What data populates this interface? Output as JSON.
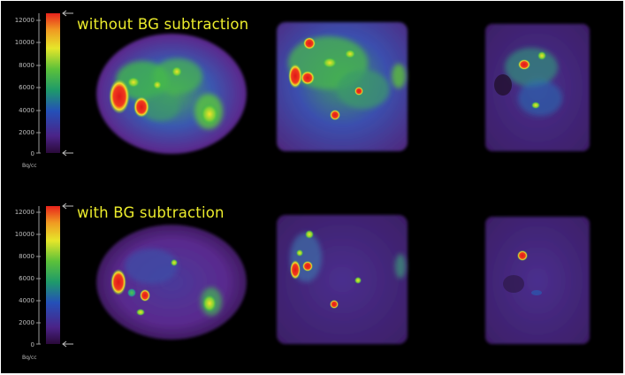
{
  "panels": [
    {
      "title": "without BG subtraction",
      "colorbar": {
        "ticks": [
          "12000",
          "10000",
          "8000",
          "6000",
          "4000",
          "2000",
          "0"
        ],
        "unit": "Bq/cc"
      }
    },
    {
      "title": "with BG subtraction",
      "colorbar": {
        "ticks": [
          "12000",
          "10000",
          "8000",
          "6000",
          "4000",
          "2000",
          "0"
        ],
        "unit": "Bq/cc"
      }
    }
  ],
  "colors": {
    "background": "#000000",
    "title_text": "#ecec2c",
    "scale_text": "#bdbdbd",
    "hot": "#e8211c",
    "warm": "#f0e82a",
    "mid": "#2bb84a",
    "cool": "#2f5fb8",
    "low": "#5a2a8a"
  }
}
